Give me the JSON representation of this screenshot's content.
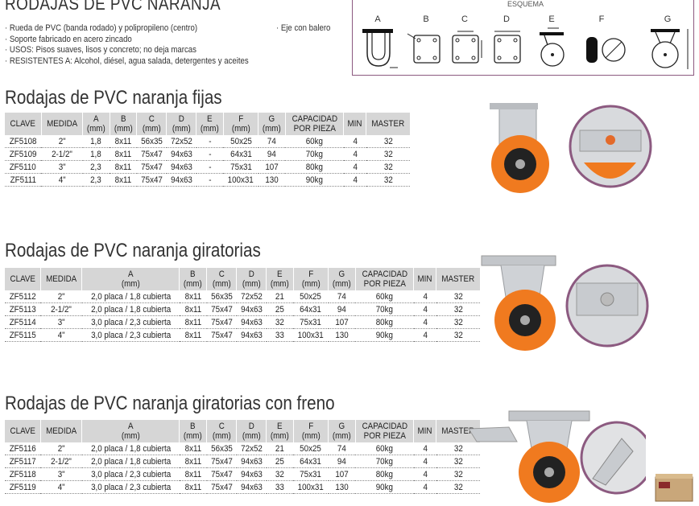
{
  "header": {
    "title": "RODAJAS DE PVC NARANJA",
    "bullets": [
      "· Rueda de PVC (banda rodado) y polipropileno (centro)",
      "· Soporte fabricado en acero zincado",
      "· USOS: Pisos suaves, lisos y concreto; no deja marcas",
      "· RESISTENTES A: Alcohol, diésel, agua salada, detergentes y aceites"
    ],
    "extra": "· Eje con balero"
  },
  "esquema": {
    "title": "ESQUEMA",
    "labels": [
      "A",
      "B",
      "C",
      "D",
      "E",
      "F",
      "G"
    ]
  },
  "colors": {
    "header_bg": "#d6d6d6",
    "esquema_border": "#8c5a80",
    "wheel": "#f07a1f"
  },
  "sections": [
    {
      "title": "Rodajas de PVC naranja fijas",
      "headers": [
        "CLAVE",
        "MEDIDA",
        "A\n(mm)",
        "B\n(mm)",
        "C\n(mm)",
        "D\n(mm)",
        "E\n(mm)",
        "F\n(mm)",
        "G\n(mm)",
        "CAPACIDAD\nPOR PIEZA",
        "MIN",
        "MASTER"
      ],
      "rows": [
        [
          "ZF5108",
          "2\"",
          "1,8",
          "8x11",
          "56x35",
          "72x52",
          "-",
          "50x25",
          "74",
          "60kg",
          "4",
          "32"
        ],
        [
          "ZF5109",
          "2-1/2\"",
          "1,8",
          "8x11",
          "75x47",
          "94x63",
          "-",
          "64x31",
          "94",
          "70kg",
          "4",
          "32"
        ],
        [
          "ZF5110",
          "3\"",
          "2,3",
          "8x11",
          "75x47",
          "94x63",
          "-",
          "75x31",
          "107",
          "80kg",
          "4",
          "32"
        ],
        [
          "ZF5111",
          "4\"",
          "2,3",
          "8x11",
          "75x47",
          "94x63",
          "-",
          "100x31",
          "130",
          "90kg",
          "4",
          "32"
        ]
      ]
    },
    {
      "title": "Rodajas de PVC naranja giratorias",
      "headers": [
        "CLAVE",
        "MEDIDA",
        "A\n(mm)",
        "B\n(mm)",
        "C\n(mm)",
        "D\n(mm)",
        "E\n(mm)",
        "F\n(mm)",
        "G\n(mm)",
        "CAPACIDAD\nPOR PIEZA",
        "MIN",
        "MASTER"
      ],
      "rows": [
        [
          "ZF5112",
          "2\"",
          "2,0 placa / 1,8 cubierta",
          "8x11",
          "56x35",
          "72x52",
          "21",
          "50x25",
          "74",
          "60kg",
          "4",
          "32"
        ],
        [
          "ZF5113",
          "2-1/2\"",
          "2,0 placa / 1,8 cubierta",
          "8x11",
          "75x47",
          "94x63",
          "25",
          "64x31",
          "94",
          "70kg",
          "4",
          "32"
        ],
        [
          "ZF5114",
          "3\"",
          "3,0 placa / 2,3 cubierta",
          "8x11",
          "75x47",
          "94x63",
          "32",
          "75x31",
          "107",
          "80kg",
          "4",
          "32"
        ],
        [
          "ZF5115",
          "4\"",
          "3,0 placa / 2,3 cubierta",
          "8x11",
          "75x47",
          "94x63",
          "33",
          "100x31",
          "130",
          "90kg",
          "4",
          "32"
        ]
      ]
    },
    {
      "title": "Rodajas de PVC naranja giratorias con freno",
      "headers": [
        "CLAVE",
        "MEDIDA",
        "A\n(mm)",
        "B\n(mm)",
        "C\n(mm)",
        "D\n(mm)",
        "E\n(mm)",
        "F\n(mm)",
        "G\n(mm)",
        "CAPACIDAD\nPOR PIEZA",
        "MIN",
        "MASTER"
      ],
      "rows": [
        [
          "ZF5116",
          "2\"",
          "2,0 placa / 1,8 cubierta",
          "8x11",
          "56x35",
          "72x52",
          "21",
          "50x25",
          "74",
          "60kg",
          "4",
          "32"
        ],
        [
          "ZF5117",
          "2-1/2\"",
          "2,0 placa / 1,8 cubierta",
          "8x11",
          "75x47",
          "94x63",
          "25",
          "64x31",
          "94",
          "70kg",
          "4",
          "32"
        ],
        [
          "ZF5118",
          "3\"",
          "3,0 placa / 2,3 cubierta",
          "8x11",
          "75x47",
          "94x63",
          "32",
          "75x31",
          "107",
          "80kg",
          "4",
          "32"
        ],
        [
          "ZF5119",
          "4\"",
          "3,0 placa / 2,3 cubierta",
          "8x11",
          "75x47",
          "94x63",
          "33",
          "100x31",
          "130",
          "90kg",
          "4",
          "32"
        ]
      ]
    }
  ]
}
